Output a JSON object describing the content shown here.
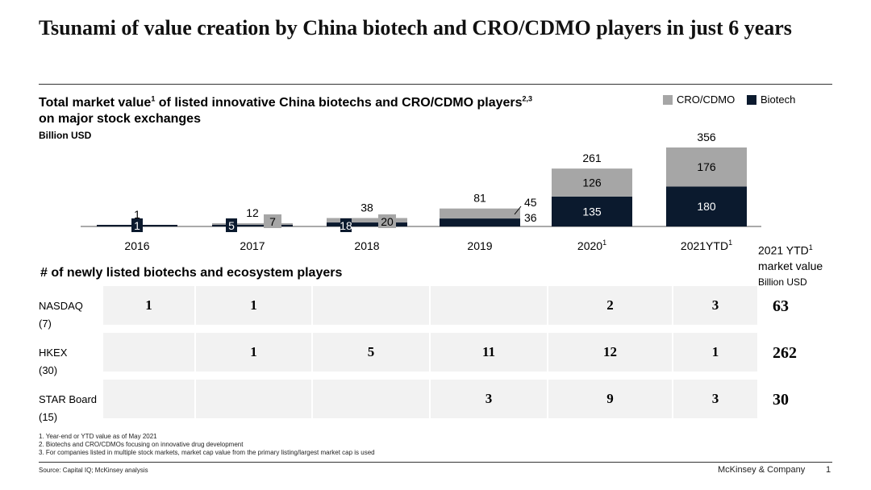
{
  "title": "Tsunami of value creation by China biotech and CRO/CDMO players in just 6 years",
  "chart_data": {
    "type": "bar",
    "stacked": true,
    "title": "Total market value of listed innovative China biotechs and CRO/CDMO players on major stock exchanges",
    "title_sup_1": "1",
    "title_sup_2": "2,3",
    "title_part_1": "Total market value",
    "title_part_2": " of listed innovative China biotechs and CRO/CDMO players",
    "title_part_3": "on major stock exchanges",
    "unit": "Billion USD",
    "categories": [
      "2016",
      "2017",
      "2018",
      "2019",
      "2020",
      "2021YTD"
    ],
    "category_sups": [
      "",
      "",
      "",
      "",
      "1",
      "1"
    ],
    "legend": [
      "CRO/CDMO",
      "Biotech"
    ],
    "legend_position": "top-right",
    "series": [
      {
        "name": "Biotech",
        "color": "#0b1a2e",
        "values": [
          1,
          5,
          18,
          36,
          135,
          180
        ]
      },
      {
        "name": "CRO/CDMO",
        "color": "#a6a6a6",
        "values": [
          0,
          7,
          20,
          45,
          126,
          176
        ]
      }
    ],
    "totals": [
      1,
      12,
      38,
      81,
      261,
      356
    ],
    "ylim": [
      0,
      356
    ]
  },
  "section2_title": "# of newly listed biotechs and ecosystem players",
  "ytd_header": {
    "line1": "2021 YTD",
    "sup": "1",
    "line2": "market value",
    "unit": "Billion USD"
  },
  "table": {
    "rows": [
      {
        "exchange": "NASDAQ",
        "count": "(7)",
        "values": [
          "1",
          "1",
          "",
          "",
          "2",
          "3"
        ],
        "ytd_value": "63"
      },
      {
        "exchange": "HKEX",
        "count": "(30)",
        "values": [
          "",
          "1",
          "5",
          "11",
          "12",
          "1"
        ],
        "ytd_value": "262"
      },
      {
        "exchange": "STAR Board",
        "count": "(15)",
        "values": [
          "",
          "",
          "",
          "3",
          "9",
          "3"
        ],
        "ytd_value": "30"
      }
    ]
  },
  "footnotes": [
    "1.   Year-end or YTD value as of May 2021",
    "2.   Biotechs and CRO/CDMOs   focusing on innovative drug development",
    "3.   For companies listed in multiple  stock markets, market cap value from the primary listing/largest market cap is used"
  ],
  "source": "Source: Capital IQ;  McKinsey analysis",
  "brand": "McKinsey & Company",
  "page_number": "1"
}
